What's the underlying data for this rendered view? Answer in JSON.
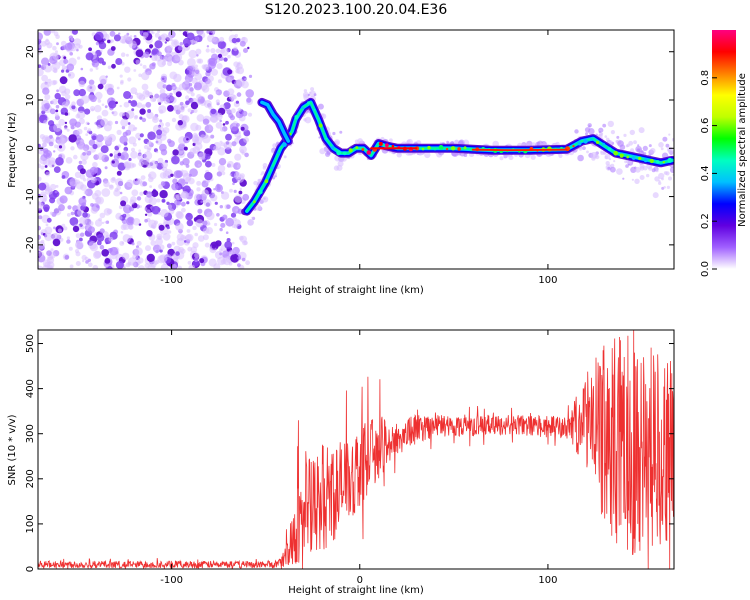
{
  "title": "S120.2023.100.20.04.E36",
  "chart_data": [
    {
      "type": "heatmap",
      "xlabel": "Height of straight line (km)",
      "ylabel": "Frequency (Hz)",
      "xlim": [
        -171,
        167
      ],
      "ylim": [
        -25,
        24.5
      ],
      "xticks": [
        -100,
        0,
        100
      ],
      "xtick_labels": [
        "-100",
        "",
        "100"
      ],
      "yticks": [
        -20,
        -10,
        0,
        10,
        20
      ],
      "ytick_labels": [
        "-20",
        "-10",
        "0",
        "10",
        "20"
      ],
      "colorbar": {
        "label": "Normalized spectral amplitude",
        "range": [
          0,
          1
        ],
        "ticks": [
          0,
          0.2,
          0.4,
          0.6,
          0.8
        ],
        "tick_labels": [
          "0.0",
          "0.2",
          "0.4",
          "0.6",
          "0.8"
        ],
        "colors": [
          "#ffffff",
          "#a060ff",
          "#6000e0",
          "#0000ff",
          "#00c0ff",
          "#00ffc0",
          "#00ff00",
          "#c0ff00",
          "#ffff00",
          "#ff8000",
          "#ff0000",
          "#ff0080"
        ]
      },
      "noise_region": [
        -171,
        -58
      ],
      "ridge": [
        [
          -60,
          -13
        ],
        [
          -56,
          -11
        ],
        [
          -50,
          -7
        ],
        [
          -46,
          -3.5
        ],
        [
          -42,
          0
        ],
        [
          -40,
          1
        ],
        [
          -36,
          3.5
        ],
        [
          -34,
          6
        ],
        [
          -30,
          8.5
        ],
        [
          -26,
          9.5
        ],
        [
          -22,
          6
        ],
        [
          -18,
          2
        ],
        [
          -14,
          0
        ],
        [
          -10,
          -1
        ],
        [
          -6,
          -1
        ],
        [
          -2,
          0
        ],
        [
          2,
          0
        ],
        [
          6,
          -1.5
        ],
        [
          10,
          1
        ],
        [
          14,
          0.5
        ],
        [
          20,
          0
        ],
        [
          30,
          0
        ],
        [
          40,
          0
        ],
        [
          50,
          0
        ],
        [
          60,
          -0.2
        ],
        [
          70,
          -0.4
        ],
        [
          80,
          -0.4
        ],
        [
          90,
          -0.4
        ],
        [
          100,
          -0.3
        ],
        [
          110,
          -0.2
        ],
        [
          118,
          1.5
        ],
        [
          124,
          2
        ],
        [
          130,
          0.5
        ],
        [
          136,
          -1
        ],
        [
          142,
          -1.5
        ],
        [
          148,
          -2
        ],
        [
          154,
          -2.5
        ],
        [
          160,
          -3
        ],
        [
          166,
          -2.5
        ]
      ],
      "upper_branch": [
        [
          -52,
          9.5
        ],
        [
          -49,
          9
        ],
        [
          -46,
          7
        ],
        [
          -43,
          5.5
        ],
        [
          -40,
          3
        ],
        [
          -38,
          1.5
        ]
      ]
    },
    {
      "type": "line",
      "xlabel": "Height of straight line (km)",
      "ylabel": "SNR (10 * v/v)",
      "xlim": [
        -171,
        167
      ],
      "ylim": [
        0,
        530
      ],
      "xticks": [
        -100,
        0,
        100
      ],
      "xtick_labels": [
        "-100",
        "0",
        "100"
      ],
      "yticks": [
        0,
        100,
        200,
        300,
        400,
        500
      ],
      "ytick_labels": [
        "0",
        "100",
        "200",
        "300",
        "400",
        "500"
      ],
      "series": [
        {
          "color": "#ee3030",
          "envelope": [
            [
              -171,
              10
            ],
            [
              -60,
              10
            ],
            [
              -45,
              10
            ],
            [
              -40,
              20
            ],
            [
              -35,
              80
            ],
            [
              -30,
              140
            ],
            [
              -25,
              120
            ],
            [
              -20,
              160
            ],
            [
              -15,
              170
            ],
            [
              -10,
              180
            ],
            [
              -5,
              200
            ],
            [
              0,
              230
            ],
            [
              5,
              250
            ],
            [
              10,
              270
            ],
            [
              20,
              290
            ],
            [
              30,
              310
            ],
            [
              40,
              318
            ],
            [
              60,
              318
            ],
            [
              80,
              320
            ],
            [
              100,
              315
            ],
            [
              110,
              312
            ],
            [
              115,
              320
            ],
            [
              120,
              330
            ],
            [
              130,
              300
            ],
            [
              140,
              280
            ],
            [
              150,
              270
            ],
            [
              160,
              270
            ],
            [
              167,
              260
            ]
          ],
          "peak_amplitude": [
            [
              -171,
              8
            ],
            [
              -42,
              8
            ],
            [
              -38,
              40
            ],
            [
              -30,
              130
            ],
            [
              -20,
              120
            ],
            [
              -10,
              110
            ],
            [
              0,
              90
            ],
            [
              10,
              70
            ],
            [
              20,
              40
            ],
            [
              40,
              25
            ],
            [
              80,
              22
            ],
            [
              110,
              25
            ],
            [
              120,
              100
            ],
            [
              130,
              200
            ],
            [
              140,
              250
            ],
            [
              150,
              240
            ],
            [
              167,
              200
            ]
          ]
        }
      ]
    }
  ]
}
